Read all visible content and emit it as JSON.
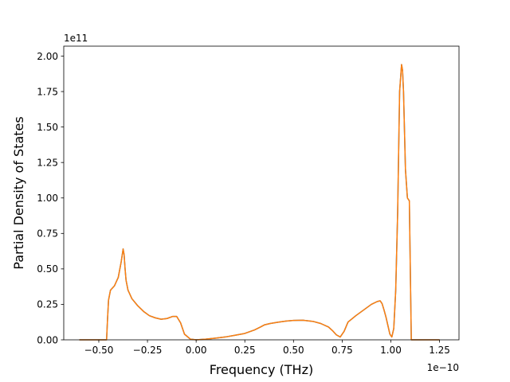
{
  "chart_data": {
    "type": "line",
    "title": "",
    "xlabel": "Frequency (THz)",
    "ylabel": "Partial Density of States",
    "x_offset_text": "1e−10",
    "y_offset_text": "1e11",
    "x_scale": 1e-10,
    "y_scale": 100000000000.0,
    "xlim": [
      -0.68,
      1.35
    ],
    "ylim": [
      0,
      2.07
    ],
    "grid": false,
    "legend": "none",
    "x_ticks": [
      {
        "value": -0.5,
        "label": "−0.50"
      },
      {
        "value": -0.25,
        "label": "−0.25"
      },
      {
        "value": 0.0,
        "label": "0.00"
      },
      {
        "value": 0.25,
        "label": "0.25"
      },
      {
        "value": 0.5,
        "label": "0.50"
      },
      {
        "value": 0.75,
        "label": "0.75"
      },
      {
        "value": 1.0,
        "label": "1.00"
      },
      {
        "value": 1.25,
        "label": "1.25"
      }
    ],
    "y_ticks": [
      {
        "value": 0.0,
        "label": "0.00"
      },
      {
        "value": 0.25,
        "label": "0.25"
      },
      {
        "value": 0.5,
        "label": "0.50"
      },
      {
        "value": 0.75,
        "label": "0.75"
      },
      {
        "value": 1.0,
        "label": "1.00"
      },
      {
        "value": 1.25,
        "label": "1.25"
      },
      {
        "value": 1.5,
        "label": "1.50"
      },
      {
        "value": 1.75,
        "label": "1.75"
      },
      {
        "value": 2.0,
        "label": "2.00"
      }
    ],
    "series": [
      {
        "color": "#1f77b4",
        "x": [
          -0.6,
          -0.47,
          -0.46,
          -0.455,
          -0.45,
          -0.44,
          -0.42,
          -0.4,
          -0.385,
          -0.375,
          -0.37,
          -0.365,
          -0.36,
          -0.35,
          -0.33,
          -0.3,
          -0.27,
          -0.24,
          -0.21,
          -0.18,
          -0.15,
          -0.12,
          -0.1,
          -0.08,
          -0.06,
          -0.03,
          0.0,
          0.05,
          0.1,
          0.15,
          0.2,
          0.25,
          0.3,
          0.33,
          0.35,
          0.38,
          0.42,
          0.46,
          0.5,
          0.55,
          0.6,
          0.64,
          0.68,
          0.7,
          0.72,
          0.74,
          0.76,
          0.78,
          0.82,
          0.86,
          0.9,
          0.93,
          0.945,
          0.955,
          0.965,
          0.975,
          0.985,
          0.995,
          1.005,
          1.015,
          1.025,
          1.035,
          1.045,
          1.055,
          1.06,
          1.065,
          1.075,
          1.085,
          1.095,
          1.105,
          1.11,
          1.12,
          1.15,
          1.2,
          1.25
        ],
        "y": [
          0.0,
          0.0,
          0.0,
          0.15,
          0.28,
          0.35,
          0.38,
          0.44,
          0.55,
          0.64,
          0.6,
          0.5,
          0.42,
          0.35,
          0.29,
          0.24,
          0.2,
          0.17,
          0.155,
          0.145,
          0.15,
          0.165,
          0.165,
          0.12,
          0.04,
          0.005,
          0.0,
          0.005,
          0.012,
          0.02,
          0.032,
          0.045,
          0.07,
          0.09,
          0.105,
          0.115,
          0.124,
          0.132,
          0.137,
          0.138,
          0.13,
          0.115,
          0.09,
          0.065,
          0.035,
          0.02,
          0.06,
          0.125,
          0.17,
          0.21,
          0.25,
          0.27,
          0.275,
          0.255,
          0.21,
          0.16,
          0.1,
          0.04,
          0.02,
          0.08,
          0.35,
          0.9,
          1.75,
          1.94,
          1.9,
          1.75,
          1.2,
          1.0,
          0.98,
          0.0,
          0.0,
          0.0,
          0.0,
          0.0,
          0.0
        ]
      },
      {
        "color": "#ff7f0e",
        "x": [
          -0.6,
          -0.47,
          -0.46,
          -0.455,
          -0.45,
          -0.44,
          -0.42,
          -0.4,
          -0.385,
          -0.375,
          -0.37,
          -0.365,
          -0.36,
          -0.35,
          -0.33,
          -0.3,
          -0.27,
          -0.24,
          -0.21,
          -0.18,
          -0.15,
          -0.12,
          -0.1,
          -0.08,
          -0.06,
          -0.03,
          0.0,
          0.05,
          0.1,
          0.15,
          0.2,
          0.25,
          0.3,
          0.33,
          0.35,
          0.38,
          0.42,
          0.46,
          0.5,
          0.55,
          0.6,
          0.64,
          0.68,
          0.7,
          0.72,
          0.74,
          0.76,
          0.78,
          0.82,
          0.86,
          0.9,
          0.93,
          0.945,
          0.955,
          0.965,
          0.975,
          0.985,
          0.995,
          1.005,
          1.015,
          1.025,
          1.035,
          1.045,
          1.055,
          1.06,
          1.065,
          1.075,
          1.085,
          1.095,
          1.105,
          1.11,
          1.12,
          1.15,
          1.2,
          1.25
        ],
        "y": [
          0.0,
          0.0,
          0.0,
          0.15,
          0.28,
          0.35,
          0.38,
          0.44,
          0.55,
          0.64,
          0.6,
          0.5,
          0.42,
          0.35,
          0.29,
          0.24,
          0.2,
          0.17,
          0.155,
          0.145,
          0.15,
          0.165,
          0.165,
          0.12,
          0.04,
          0.005,
          0.0,
          0.005,
          0.012,
          0.02,
          0.032,
          0.045,
          0.07,
          0.09,
          0.105,
          0.115,
          0.124,
          0.132,
          0.137,
          0.138,
          0.13,
          0.115,
          0.09,
          0.065,
          0.035,
          0.02,
          0.06,
          0.125,
          0.17,
          0.21,
          0.25,
          0.27,
          0.275,
          0.255,
          0.21,
          0.16,
          0.1,
          0.04,
          0.02,
          0.08,
          0.35,
          0.9,
          1.75,
          1.94,
          1.9,
          1.75,
          1.2,
          1.0,
          0.98,
          0.0,
          0.0,
          0.0,
          0.0,
          0.0,
          0.0
        ]
      }
    ]
  }
}
